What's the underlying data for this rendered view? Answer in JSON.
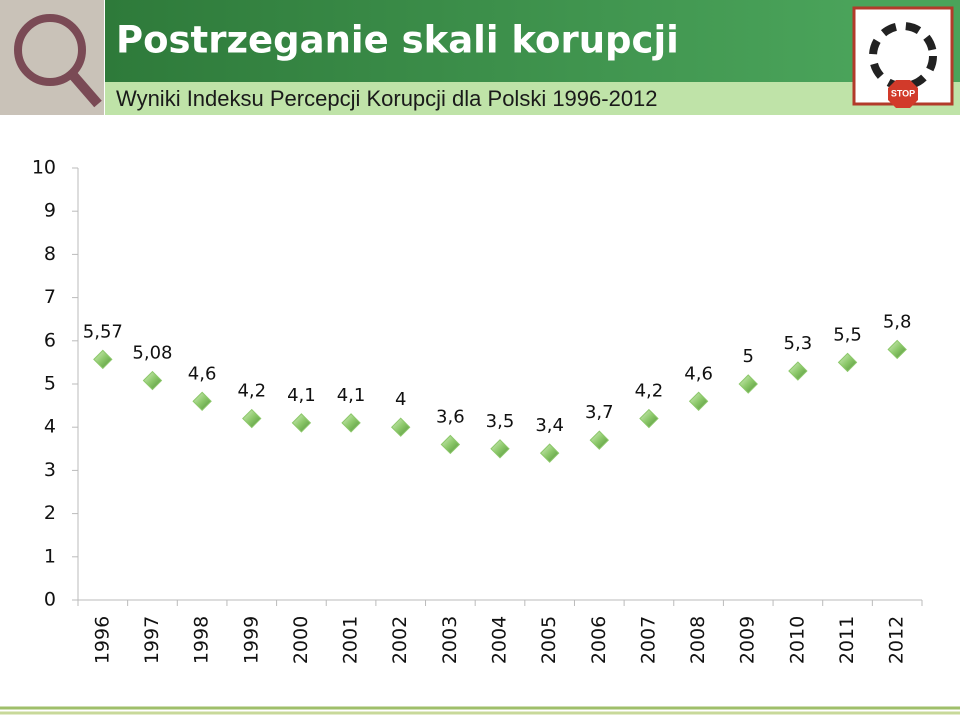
{
  "chart_data": {
    "type": "scatter",
    "title": "Postrzeganie skali korupcji",
    "subtitle": "Wyniki Indeksu Percepcji Korupcji dla Polski 1996-2012",
    "logo_label": "STOP",
    "categories": [
      "1996",
      "1997",
      "1998",
      "1999",
      "2000",
      "2001",
      "2002",
      "2003",
      "2004",
      "2005",
      "2006",
      "2007",
      "2008",
      "2009",
      "2010",
      "2011",
      "2012"
    ],
    "values": [
      5.57,
      5.08,
      4.6,
      4.2,
      4.1,
      4.1,
      4,
      3.6,
      3.5,
      3.4,
      3.7,
      4.2,
      4.6,
      5,
      5.3,
      5.5,
      5.8
    ],
    "value_labels": [
      "5,57",
      "5,08",
      "4,6",
      "4,2",
      "4,1",
      "4,1",
      "4",
      "3,6",
      "3,5",
      "3,4",
      "3,7",
      "4,2",
      "4,6",
      "5",
      "5,3",
      "5,5",
      "5,8"
    ],
    "color": "#8cc86a",
    "ylim": [
      0,
      10
    ],
    "yticks": [
      0,
      1,
      2,
      3,
      4,
      5,
      6,
      7,
      8,
      9,
      10
    ],
    "grid": false
  }
}
